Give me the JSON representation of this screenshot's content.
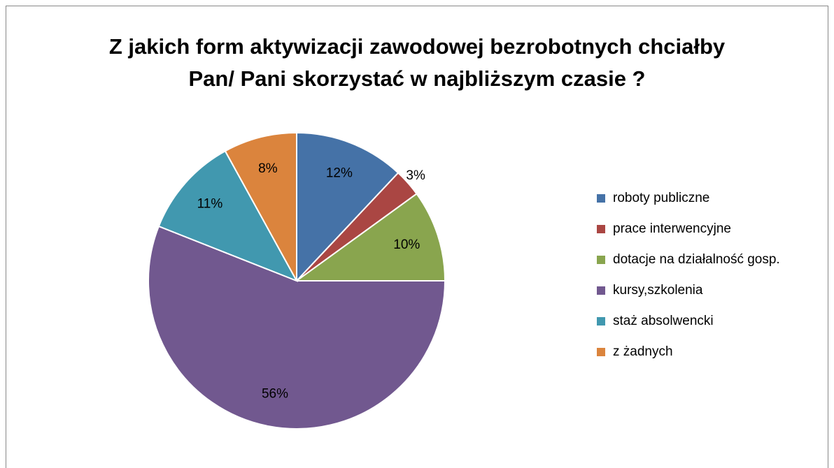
{
  "chart_data": {
    "type": "pie",
    "title": "Z jakich form aktywizacji zawodowej bezrobotnych chciałby\nPan/ Pani skorzystać w najbliższym czasie ?",
    "categories": [
      "roboty publiczne",
      "prace interwencyjne",
      "dotacje na działalność gosp.",
      "kursy,szkolenia",
      "staż absolwencki",
      "z żadnych"
    ],
    "values": [
      12,
      3,
      10,
      56,
      11,
      8
    ],
    "value_labels": [
      "12%",
      "3%",
      "10%",
      "56%",
      "11%",
      "8%"
    ],
    "colors": [
      "#4572a7",
      "#aa4643",
      "#89a54e",
      "#71588f",
      "#4198af",
      "#db843d"
    ],
    "legend": "right"
  }
}
